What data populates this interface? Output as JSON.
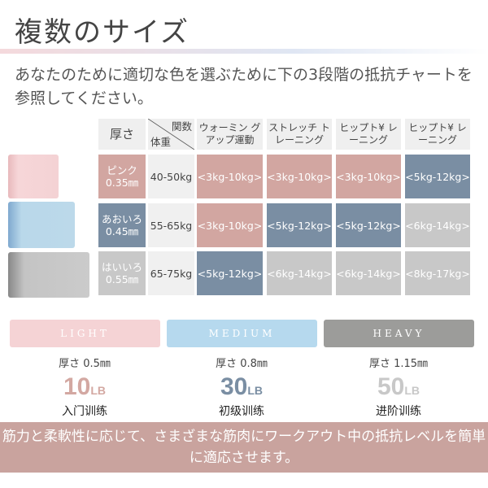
{
  "title": "複数のサイズ",
  "subtitle": "あなたのために適切な色を選ぶために下の3段階の抵抗チャートを参照してください。",
  "table": {
    "headers": {
      "thickness": "厚さ",
      "func": "関数",
      "weight": "体重",
      "cols": [
        "ウォーミン グアップ運動",
        "ストレッチ トレーニング",
        "ヒップト¥ レーニング",
        "ヒップト¥ レーニング"
      ]
    },
    "rows": [
      {
        "color": "ピンク",
        "mm": "0.35㎜",
        "weight": "40-50kg",
        "vals": [
          "<3kg-10kg>",
          "<3kg-10kg>",
          "<3kg-10kg>",
          "<5kg-12kg>"
        ],
        "cls": [
          "pk",
          "pk",
          "pk",
          "bl"
        ]
      },
      {
        "color": "あおいろ",
        "mm": "0.45㎜",
        "weight": "55-65kg",
        "vals": [
          "<3kg-10kg>",
          "<5kg-12kg>",
          "<5kg-12kg>",
          "<6kg-14kg>"
        ],
        "cls": [
          "pk",
          "bl",
          "bl",
          "gr"
        ]
      },
      {
        "color": "はいいろ",
        "mm": "0.55㎜",
        "weight": "65-75kg",
        "vals": [
          "<5kg-12kg>",
          "<6kg-14kg>",
          "<6kg-14kg>",
          "<8kg-17kg>"
        ],
        "cls": [
          "bl",
          "gr",
          "gr",
          "gr"
        ]
      }
    ]
  },
  "bands": [
    {
      "label": "LIGHT",
      "thickness": "厚さ 0.5㎜",
      "num": "10",
      "unit": "LB",
      "level": "入门训练",
      "color": "#d3a8a2",
      "band": "#f5d3d5"
    },
    {
      "label": "MEDIUM",
      "thickness": "厚さ 0.8㎜",
      "num": "30",
      "unit": "LB",
      "level": "初级训练",
      "color": "#7a8ea3",
      "band": "#b6d9ee"
    },
    {
      "label": "HEAVY",
      "thickness": "厚さ 1.15㎜",
      "num": "50",
      "unit": "LB",
      "level": "进阶训练",
      "color": "#c8c8c8",
      "band": "#9c9c9a"
    }
  ],
  "banner": "筋力と柔軟性に応じて、さまざまな筋肉にワークアウト中の抵抗レベルを簡単に適応させます。"
}
